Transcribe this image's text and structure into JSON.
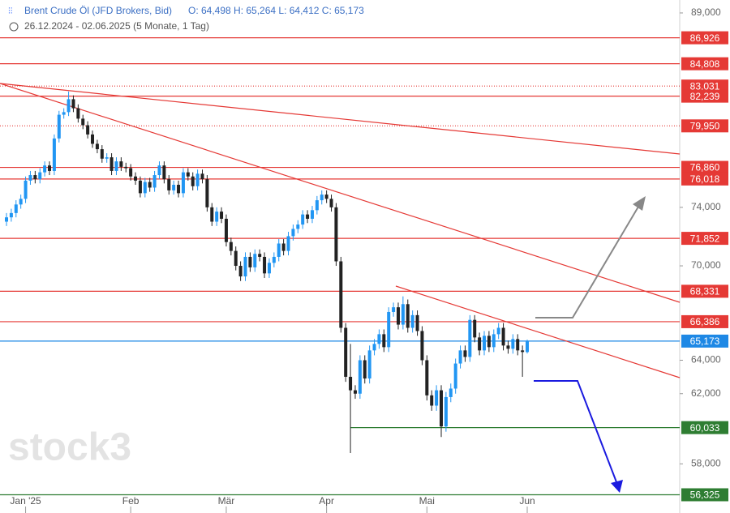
{
  "chart_data": {
    "type": "candlestick",
    "title": "Brent Crude Öl (JFD Brokers, Bid)",
    "ohlc_text": "O: 64,498   H: 65,264   L: 64,412   C: 65,173",
    "period": "26.12.2024 - 02.06.2025  (5 Monate, 1 Tag)",
    "watermark": "stock3",
    "log_scale": true,
    "ylim": [
      55.7,
      90.1
    ],
    "yticks": [
      {
        "value": 58,
        "label": "58,000"
      },
      {
        "value": 62,
        "label": "62,000"
      },
      {
        "value": 64,
        "label": "64,000"
      },
      {
        "value": 70,
        "label": "70,000"
      },
      {
        "value": 74,
        "label": "74,000"
      },
      {
        "value": 89,
        "label": "89,000"
      }
    ],
    "xticks": [
      {
        "value": 4,
        "label": "Jan '25"
      },
      {
        "value": 26,
        "label": "Feb"
      },
      {
        "value": 46,
        "label": "Mär"
      },
      {
        "value": 67,
        "label": "Apr"
      },
      {
        "value": 88,
        "label": "Mai"
      },
      {
        "value": 109,
        "label": "Jun"
      }
    ],
    "up_color": "#2196f3",
    "down_color": "#222222",
    "levels": [
      {
        "value": 86.926,
        "label": "86,926",
        "color": "#e53935",
        "dotted": false
      },
      {
        "value": 84.808,
        "label": "84,808",
        "color": "#e53935",
        "dotted": false
      },
      {
        "value": 83.031,
        "label": "83,031",
        "color": "#e53935",
        "dotted": true
      },
      {
        "value": 82.239,
        "label": "82,239",
        "color": "#e53935",
        "dotted": false
      },
      {
        "value": 79.95,
        "label": "79,950",
        "color": "#e53935",
        "dotted": true
      },
      {
        "value": 76.86,
        "label": "76,860",
        "color": "#e53935",
        "dotted": false
      },
      {
        "value": 76.018,
        "label": "76,018",
        "color": "#e53935",
        "dotted": false
      },
      {
        "value": 71.852,
        "label": "71,852",
        "color": "#e53935",
        "dotted": false
      },
      {
        "value": 68.331,
        "label": "68,331",
        "color": "#e53935",
        "dotted": false
      },
      {
        "value": 66.386,
        "label": "66,386",
        "color": "#e53935",
        "dotted": false
      },
      {
        "value": 65.173,
        "label": "65,173",
        "color": "#1e88e5",
        "dotted": false
      },
      {
        "value": 60.033,
        "label": "60,033",
        "color": "#2e7d32",
        "dotted": false
      },
      {
        "value": 56.325,
        "label": "56,325",
        "color": "#2e7d32",
        "dotted": false
      }
    ],
    "ohlc": [
      [
        73.0,
        73.6,
        72.7,
        73.3
      ],
      [
        73.3,
        73.9,
        73.0,
        73.6
      ],
      [
        73.6,
        74.5,
        73.3,
        74.2
      ],
      [
        74.2,
        74.9,
        73.9,
        74.6
      ],
      [
        74.6,
        76.2,
        74.3,
        75.9
      ],
      [
        75.9,
        76.6,
        75.6,
        76.3
      ],
      [
        76.3,
        76.6,
        75.7,
        76.0
      ],
      [
        76.0,
        76.8,
        75.7,
        76.5
      ],
      [
        76.5,
        77.3,
        76.2,
        77.0
      ],
      [
        77.0,
        77.3,
        76.3,
        76.6
      ],
      [
        76.6,
        79.3,
        76.3,
        79.0
      ],
      [
        79.0,
        81.1,
        78.7,
        80.8
      ],
      [
        80.8,
        81.3,
        80.5,
        81.0
      ],
      [
        81.0,
        82.6,
        80.7,
        82.0
      ],
      [
        82.0,
        82.3,
        81.0,
        81.3
      ],
      [
        81.3,
        81.6,
        80.2,
        80.5
      ],
      [
        80.5,
        80.8,
        79.7,
        80.0
      ],
      [
        80.0,
        80.3,
        79.0,
        79.3
      ],
      [
        79.3,
        79.6,
        78.3,
        78.6
      ],
      [
        78.6,
        78.9,
        77.9,
        78.2
      ],
      [
        78.2,
        78.5,
        77.2,
        77.5
      ],
      [
        77.5,
        77.9,
        77.2,
        77.6
      ],
      [
        77.6,
        77.9,
        76.3,
        76.6
      ],
      [
        76.6,
        77.6,
        76.3,
        77.3
      ],
      [
        77.3,
        77.6,
        76.6,
        76.9
      ],
      [
        76.9,
        77.2,
        76.5,
        76.8
      ],
      [
        76.8,
        77.1,
        75.9,
        76.2
      ],
      [
        76.2,
        76.5,
        75.6,
        75.9
      ],
      [
        75.9,
        76.2,
        74.7,
        75.0
      ],
      [
        75.0,
        76.1,
        74.7,
        75.8
      ],
      [
        75.8,
        76.1,
        75.1,
        75.4
      ],
      [
        75.4,
        76.6,
        75.1,
        76.3
      ],
      [
        76.3,
        77.3,
        76.0,
        77.0
      ],
      [
        77.0,
        77.3,
        75.7,
        76.0
      ],
      [
        76.0,
        76.3,
        74.9,
        75.2
      ],
      [
        75.2,
        75.9,
        74.9,
        75.6
      ],
      [
        75.6,
        75.9,
        74.7,
        75.0
      ],
      [
        75.0,
        76.8,
        74.7,
        76.5
      ],
      [
        76.5,
        76.8,
        75.9,
        76.2
      ],
      [
        76.2,
        76.5,
        75.2,
        75.5
      ],
      [
        75.5,
        76.7,
        75.2,
        76.4
      ],
      [
        76.4,
        76.7,
        75.7,
        76.0
      ],
      [
        76.0,
        76.3,
        73.7,
        74.0
      ],
      [
        74.0,
        74.3,
        72.7,
        73.0
      ],
      [
        73.0,
        74.0,
        72.7,
        73.7
      ],
      [
        73.7,
        74.0,
        72.9,
        73.2
      ],
      [
        73.2,
        73.5,
        71.3,
        71.6
      ],
      [
        71.6,
        71.9,
        70.7,
        71.0
      ],
      [
        71.0,
        71.3,
        69.7,
        70.0
      ],
      [
        70.0,
        70.3,
        69.0,
        69.3
      ],
      [
        69.3,
        70.9,
        69.0,
        70.6
      ],
      [
        70.6,
        70.9,
        69.6,
        69.9
      ],
      [
        69.9,
        71.1,
        69.6,
        70.8
      ],
      [
        70.8,
        71.1,
        70.3,
        70.6
      ],
      [
        70.6,
        70.9,
        69.2,
        69.5
      ],
      [
        69.5,
        70.5,
        69.2,
        70.2
      ],
      [
        70.2,
        70.9,
        69.9,
        70.6
      ],
      [
        70.6,
        71.8,
        70.3,
        71.5
      ],
      [
        71.5,
        71.8,
        70.7,
        71.0
      ],
      [
        71.0,
        72.3,
        70.7,
        72.0
      ],
      [
        72.0,
        72.8,
        71.7,
        72.5
      ],
      [
        72.5,
        73.1,
        72.2,
        72.8
      ],
      [
        72.8,
        73.8,
        72.5,
        73.5
      ],
      [
        73.5,
        73.8,
        72.9,
        73.2
      ],
      [
        73.2,
        74.1,
        72.9,
        73.8
      ],
      [
        73.8,
        74.8,
        73.5,
        74.5
      ],
      [
        74.5,
        75.2,
        74.2,
        74.9
      ],
      [
        74.9,
        75.2,
        74.3,
        74.6
      ],
      [
        74.6,
        74.9,
        73.7,
        74.0
      ],
      [
        74.0,
        74.3,
        70.0,
        70.3
      ],
      [
        70.3,
        70.6,
        65.7,
        66.0
      ],
      [
        66.0,
        66.3,
        62.7,
        63.0
      ],
      [
        63.0,
        65.0,
        58.6,
        62.2
      ],
      [
        62.2,
        62.5,
        61.7,
        62.0
      ],
      [
        62.0,
        64.3,
        61.7,
        64.0
      ],
      [
        64.0,
        64.3,
        62.6,
        62.9
      ],
      [
        62.9,
        64.9,
        62.6,
        64.6
      ],
      [
        64.6,
        65.3,
        64.3,
        65.0
      ],
      [
        65.0,
        65.9,
        64.7,
        65.6
      ],
      [
        65.6,
        65.9,
        64.5,
        64.8
      ],
      [
        64.8,
        67.3,
        64.5,
        67.0
      ],
      [
        67.0,
        67.6,
        66.7,
        67.3
      ],
      [
        67.3,
        67.6,
        65.9,
        66.2
      ],
      [
        66.2,
        68.0,
        65.9,
        67.5
      ],
      [
        67.5,
        67.8,
        65.7,
        66.0
      ],
      [
        66.0,
        67.1,
        65.7,
        66.8
      ],
      [
        66.8,
        67.1,
        65.5,
        65.8
      ],
      [
        65.8,
        66.1,
        63.7,
        64.0
      ],
      [
        64.0,
        64.3,
        61.6,
        61.9
      ],
      [
        61.9,
        62.2,
        61.0,
        61.3
      ],
      [
        61.3,
        62.5,
        61.0,
        62.2
      ],
      [
        62.2,
        62.5,
        59.5,
        60.1
      ],
      [
        60.1,
        62.1,
        59.8,
        61.8
      ],
      [
        61.8,
        62.6,
        61.5,
        62.3
      ],
      [
        62.3,
        64.1,
        62.0,
        63.8
      ],
      [
        63.8,
        64.9,
        63.5,
        64.6
      ],
      [
        64.6,
        64.9,
        63.9,
        64.2
      ],
      [
        64.2,
        66.8,
        63.9,
        66.5
      ],
      [
        66.5,
        66.8,
        65.1,
        65.4
      ],
      [
        65.4,
        65.7,
        64.3,
        64.6
      ],
      [
        64.6,
        65.8,
        64.3,
        65.5
      ],
      [
        65.5,
        65.8,
        64.5,
        64.8
      ],
      [
        64.8,
        65.9,
        64.5,
        65.6
      ],
      [
        65.6,
        66.3,
        65.3,
        66.0
      ],
      [
        66.0,
        66.3,
        64.6,
        64.9
      ],
      [
        64.9,
        65.2,
        64.4,
        64.7
      ],
      [
        64.7,
        65.6,
        64.4,
        65.3
      ],
      [
        65.3,
        65.6,
        64.3,
        64.6
      ],
      [
        64.6,
        64.9,
        63.0,
        64.5
      ],
      [
        64.498,
        65.264,
        64.412,
        65.173
      ]
    ]
  }
}
